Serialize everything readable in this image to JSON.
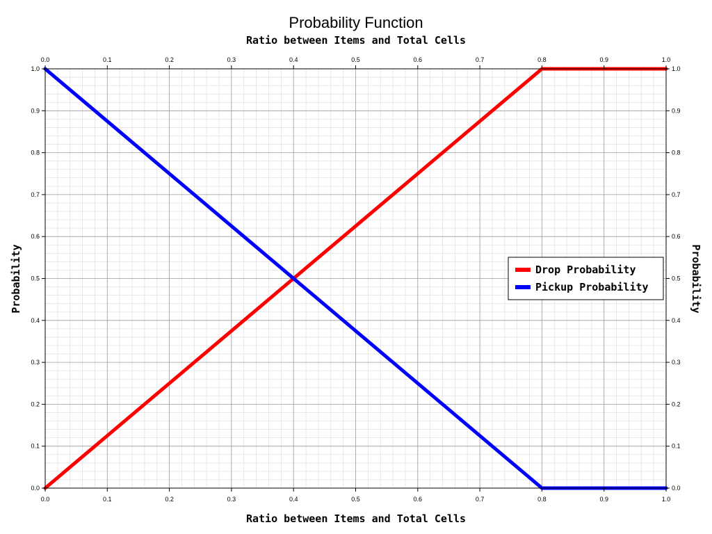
{
  "chart_data": {
    "type": "line",
    "title": "Probability Function",
    "top_xlabel": "Ratio between Items and Total Cells",
    "xlabel": "Ratio between Items and Total Cells",
    "ylabel": "Probability",
    "right_ylabel": "Probability",
    "xlim": [
      0,
      1
    ],
    "ylim": [
      0,
      1
    ],
    "x_ticks": [
      "0.0",
      "0.1",
      "0.2",
      "0.3",
      "0.4",
      "0.5",
      "0.6",
      "0.7",
      "0.8",
      "0.9",
      "1.0"
    ],
    "y_ticks": [
      "0.0",
      "0.1",
      "0.2",
      "0.3",
      "0.4",
      "0.5",
      "0.6",
      "0.7",
      "0.8",
      "0.9",
      "1.0"
    ],
    "grid": true,
    "legend_position": "right",
    "series": [
      {
        "name": "Drop Probability",
        "color": "#ff0000",
        "x": [
          0,
          0.8,
          1
        ],
        "y": [
          0,
          1,
          1
        ]
      },
      {
        "name": "Pickup Probability",
        "color": "#0000ff",
        "x": [
          0,
          0.8,
          1
        ],
        "y": [
          1,
          0,
          0
        ]
      }
    ]
  }
}
